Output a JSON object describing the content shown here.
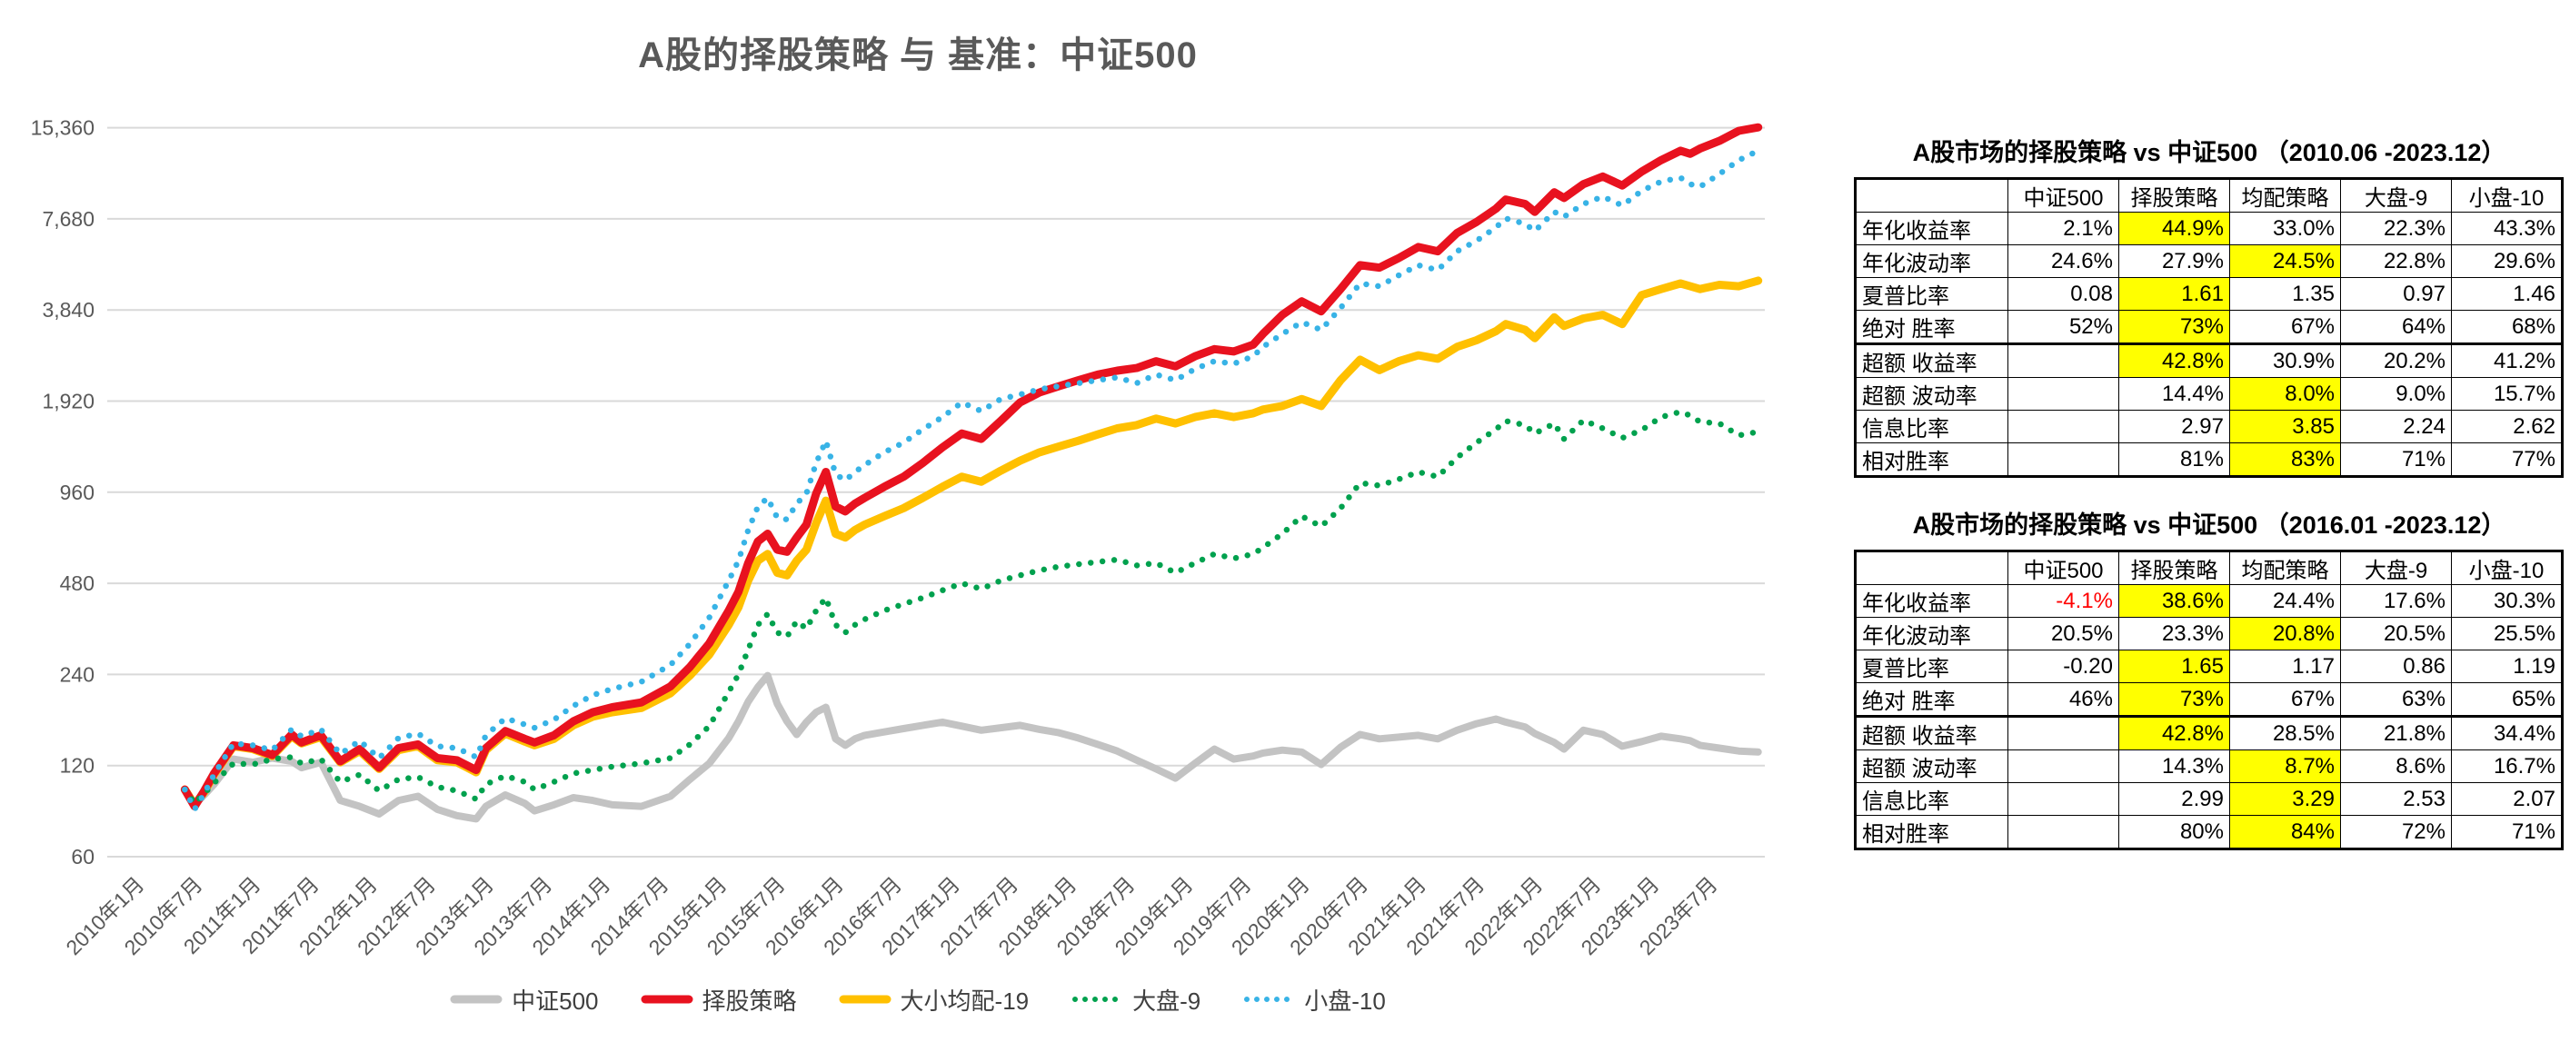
{
  "chart": {
    "title": "A股的择股策略 与 基准：中证500",
    "y_ticks": [
      {
        "label": "15,360",
        "value": 15360
      },
      {
        "label": "7,680",
        "value": 7680
      },
      {
        "label": "3,840",
        "value": 3840
      },
      {
        "label": "1,920",
        "value": 1920
      },
      {
        "label": "960",
        "value": 960
      },
      {
        "label": "480",
        "value": 480
      },
      {
        "label": "240",
        "value": 240
      },
      {
        "label": "120",
        "value": 120
      },
      {
        "label": "60",
        "value": 60
      }
    ],
    "x_tick_months": [
      0,
      6,
      12,
      18,
      24,
      30,
      36,
      42,
      48,
      54,
      60,
      66,
      72,
      78,
      84,
      90,
      96,
      102,
      108,
      114,
      120,
      126,
      132,
      138,
      144,
      150,
      156,
      162
    ],
    "x_tick_labels": [
      "2010年1月",
      "2010年7月",
      "2011年1月",
      "2011年7月",
      "2012年1月",
      "2012年7月",
      "2013年1月",
      "2013年7月",
      "2014年1月",
      "2014年7月",
      "2015年1月",
      "2015年7月",
      "2016年1月",
      "2016年7月",
      "2017年1月",
      "2017年7月",
      "2018年1月",
      "2018年7月",
      "2019年1月",
      "2019年7月",
      "2020年1月",
      "2020年7月",
      "2021年1月",
      "2021年7月",
      "2022年1月",
      "2022年7月",
      "2023年1月",
      "2023年7月"
    ],
    "grid_color": "#d9d9d9",
    "axis_text_color": "#595959"
  },
  "chart_data": {
    "type": "line",
    "title": "A股的择股策略 与 基准：中证500",
    "xlabel": "",
    "ylabel": "",
    "x_unit": "months since 2010-01, data 2010-06 to 2023-12",
    "y_scale": "log2",
    "ylim": [
      60,
      15360
    ],
    "grid": "horizontal",
    "legend_position": "bottom",
    "x": [
      5,
      6,
      7,
      8,
      10,
      12,
      14,
      16,
      17,
      19,
      21,
      23,
      25,
      27,
      29,
      31,
      33,
      35,
      36,
      38,
      40,
      41,
      43,
      45,
      47,
      49,
      52,
      55,
      57,
      59,
      61,
      62,
      63,
      64,
      65,
      66,
      67,
      68,
      69,
      70,
      71,
      72,
      73,
      74,
      75,
      77,
      79,
      81,
      83,
      85,
      87,
      89,
      91,
      93,
      95,
      97,
      99,
      101,
      103,
      105,
      107,
      109,
      111,
      113,
      115,
      116,
      118,
      120,
      122,
      124,
      126,
      128,
      130,
      132,
      134,
      136,
      138,
      140,
      141,
      143,
      144,
      146,
      147,
      149,
      151,
      153,
      155,
      157,
      159,
      160,
      161,
      163,
      165,
      167
    ],
    "series": [
      {
        "name": "中证500",
        "color": "#c3c3c3",
        "style": "solid",
        "width": 8,
        "values": [
          100,
          89,
          96,
          104,
          126,
          123,
          127,
          124,
          118,
          123,
          92,
          88,
          83,
          92,
          95,
          86,
          82,
          80,
          88,
          96,
          90,
          85,
          89,
          94,
          92,
          89,
          88,
          95,
          108,
          122,
          148,
          168,
          195,
          218,
          238,
          192,
          168,
          152,
          167,
          180,
          187,
          147,
          140,
          147,
          151,
          155,
          159,
          163,
          167,
          162,
          157,
          160,
          163,
          158,
          154,
          148,
          141,
          134,
          125,
          117,
          109,
          122,
          136,
          126,
          129,
          132,
          135,
          133,
          121,
          138,
          152,
          147,
          149,
          151,
          147,
          157,
          165,
          171,
          167,
          161,
          153,
          143,
          136,
          157,
          152,
          139,
          144,
          150,
          147,
          145,
          140,
          137,
          134,
          133
        ]
      },
      {
        "name": "择股策略",
        "color": "#e8121f",
        "style": "solid",
        "width": 9,
        "values": [
          100,
          88,
          99,
          113,
          140,
          137,
          130,
          152,
          143,
          151,
          124,
          136,
          118,
          137,
          141,
          127,
          125,
          116,
          137,
          156,
          147,
          143,
          151,
          168,
          180,
          187,
          194,
          219,
          254,
          304,
          390,
          450,
          560,
          660,
          700,
          620,
          610,
          680,
          750,
          950,
          1120,
          860,
          830,
          880,
          920,
          1000,
          1080,
          1200,
          1350,
          1500,
          1440,
          1650,
          1900,
          2050,
          2150,
          2250,
          2350,
          2420,
          2470,
          2600,
          2500,
          2700,
          2850,
          2800,
          2950,
          3200,
          3700,
          4100,
          3800,
          4500,
          5400,
          5300,
          5700,
          6200,
          6000,
          6900,
          7500,
          8300,
          8900,
          8600,
          8100,
          9400,
          9000,
          10000,
          10600,
          9900,
          11000,
          12000,
          12900,
          12600,
          13100,
          13900,
          15000,
          15400
        ]
      },
      {
        "name": "大小均配-19",
        "color": "#ffc000",
        "style": "solid",
        "width": 9,
        "values": [
          100,
          89,
          98,
          112,
          139,
          136,
          129,
          150,
          142,
          149,
          123,
          134,
          117,
          135,
          139,
          125,
          123,
          114,
          135,
          153,
          144,
          140,
          147,
          163,
          174,
          180,
          186,
          208,
          238,
          279,
          350,
          400,
          490,
          570,
          600,
          520,
          510,
          570,
          620,
          760,
          900,
          700,
          680,
          720,
          750,
          800,
          850,
          920,
          1000,
          1080,
          1040,
          1130,
          1220,
          1300,
          1360,
          1420,
          1490,
          1560,
          1600,
          1680,
          1620,
          1700,
          1750,
          1700,
          1750,
          1800,
          1850,
          1950,
          1850,
          2250,
          2630,
          2430,
          2600,
          2720,
          2650,
          2900,
          3050,
          3270,
          3450,
          3300,
          3100,
          3630,
          3400,
          3600,
          3700,
          3450,
          4300,
          4500,
          4700,
          4600,
          4500,
          4650,
          4600,
          4800
        ]
      },
      {
        "name": "大盘-9",
        "color": "#00a14e",
        "style": "dotted",
        "width": 6.5,
        "values": [
          100,
          90,
          97,
          105,
          122,
          121,
          126,
          128,
          122,
          126,
          106,
          112,
          99,
          108,
          110,
          102,
          99,
          93,
          104,
          111,
          106,
          100,
          106,
          113,
          116,
          119,
          122,
          127,
          141,
          162,
          210,
          240,
          290,
          350,
          380,
          330,
          320,
          360,
          340,
          390,
          430,
          350,
          330,
          350,
          365,
          390,
          410,
          430,
          455,
          480,
          460,
          490,
          510,
          530,
          545,
          555,
          565,
          575,
          550,
          560,
          520,
          560,
          600,
          580,
          600,
          630,
          700,
          800,
          740,
          850,
          1030,
          1010,
          1060,
          1120,
          1080,
          1250,
          1400,
          1550,
          1650,
          1600,
          1500,
          1620,
          1440,
          1660,
          1560,
          1450,
          1540,
          1700,
          1770,
          1720,
          1640,
          1620,
          1480,
          1520
        ]
      },
      {
        "name": "小盘-10",
        "color": "#38b3e6",
        "style": "dotted",
        "width": 6.5,
        "values": [
          100,
          86,
          97,
          112,
          142,
          140,
          135,
          158,
          150,
          158,
          131,
          145,
          127,
          148,
          153,
          139,
          137,
          128,
          151,
          172,
          164,
          160,
          170,
          189,
          205,
          215,
          227,
          258,
          303,
          370,
          490,
          570,
          720,
          860,
          920,
          790,
          780,
          880,
          950,
          1200,
          1420,
          1100,
          1050,
          1120,
          1180,
          1300,
          1400,
          1550,
          1700,
          1900,
          1780,
          1950,
          2020,
          2100,
          2150,
          2200,
          2250,
          2300,
          2200,
          2350,
          2250,
          2450,
          2600,
          2550,
          2700,
          2900,
          3200,
          3500,
          3300,
          3900,
          4700,
          4600,
          5000,
          5400,
          5200,
          6000,
          6500,
          7200,
          7700,
          7400,
          7000,
          8100,
          7800,
          8600,
          9100,
          8500,
          9500,
          10200,
          10500,
          10000,
          9800,
          10800,
          12000,
          12900
        ]
      }
    ],
    "draw_order": [
      0,
      2,
      1,
      3,
      4
    ]
  },
  "tables": [
    {
      "title": "A股市场的择股策略 vs 中证500 （2010.06 -2023.12）",
      "columns": [
        "",
        "中证500",
        "择股策略",
        "均配策略",
        "大盘-9",
        "小盘-10"
      ],
      "highlight_color": "#ffff00",
      "rows": [
        {
          "label": "年化收益率",
          "values": [
            "2.1%",
            "44.9%",
            "33.0%",
            "22.3%",
            "43.3%"
          ],
          "highlight": 1
        },
        {
          "label": "年化波动率",
          "values": [
            "24.6%",
            "27.9%",
            "24.5%",
            "22.8%",
            "29.6%"
          ],
          "highlight": 2
        },
        {
          "label": "夏普比率",
          "values": [
            "0.08",
            "1.61",
            "1.35",
            "0.97",
            "1.46"
          ],
          "highlight": 1
        },
        {
          "label": "绝对 胜率",
          "values": [
            "52%",
            "73%",
            "67%",
            "64%",
            "68%"
          ],
          "highlight": 1
        },
        {
          "label": "超额 收益率",
          "values": [
            "",
            "42.8%",
            "30.9%",
            "20.2%",
            "41.2%"
          ],
          "highlight": 1,
          "group_start": true
        },
        {
          "label": "超额 波动率",
          "values": [
            "",
            "14.4%",
            "8.0%",
            "9.0%",
            "15.7%"
          ],
          "highlight": 2
        },
        {
          "label": "信息比率",
          "values": [
            "",
            "2.97",
            "3.85",
            "2.24",
            "2.62"
          ],
          "highlight": 2
        },
        {
          "label": "相对胜率",
          "values": [
            "",
            "81%",
            "83%",
            "71%",
            "77%"
          ],
          "highlight": 2
        }
      ]
    },
    {
      "title": "A股市场的择股策略 vs 中证500 （2016.01 -2023.12）",
      "columns": [
        "",
        "中证500",
        "择股策略",
        "均配策略",
        "大盘-9",
        "小盘-10"
      ],
      "highlight_color": "#ffff00",
      "rows": [
        {
          "label": "年化收益率",
          "values": [
            "-4.1%",
            "38.6%",
            "24.4%",
            "17.6%",
            "30.3%"
          ],
          "highlight": 1,
          "neg": 0
        },
        {
          "label": "年化波动率",
          "values": [
            "20.5%",
            "23.3%",
            "20.8%",
            "20.5%",
            "25.5%"
          ],
          "highlight": 2
        },
        {
          "label": "夏普比率",
          "values": [
            "-0.20",
            "1.65",
            "1.17",
            "0.86",
            "1.19"
          ],
          "highlight": 1
        },
        {
          "label": "绝对 胜率",
          "values": [
            "46%",
            "73%",
            "67%",
            "63%",
            "65%"
          ],
          "highlight": 1
        },
        {
          "label": "超额 收益率",
          "values": [
            "",
            "42.8%",
            "28.5%",
            "21.8%",
            "34.4%"
          ],
          "highlight": 1,
          "group_start": true
        },
        {
          "label": "超额 波动率",
          "values": [
            "",
            "14.3%",
            "8.7%",
            "8.6%",
            "16.7%"
          ],
          "highlight": 2
        },
        {
          "label": "信息比率",
          "values": [
            "",
            "2.99",
            "3.29",
            "2.53",
            "2.07"
          ],
          "highlight": 2
        },
        {
          "label": "相对胜率",
          "values": [
            "",
            "80%",
            "84%",
            "72%",
            "71%"
          ],
          "highlight": 2
        }
      ]
    }
  ]
}
